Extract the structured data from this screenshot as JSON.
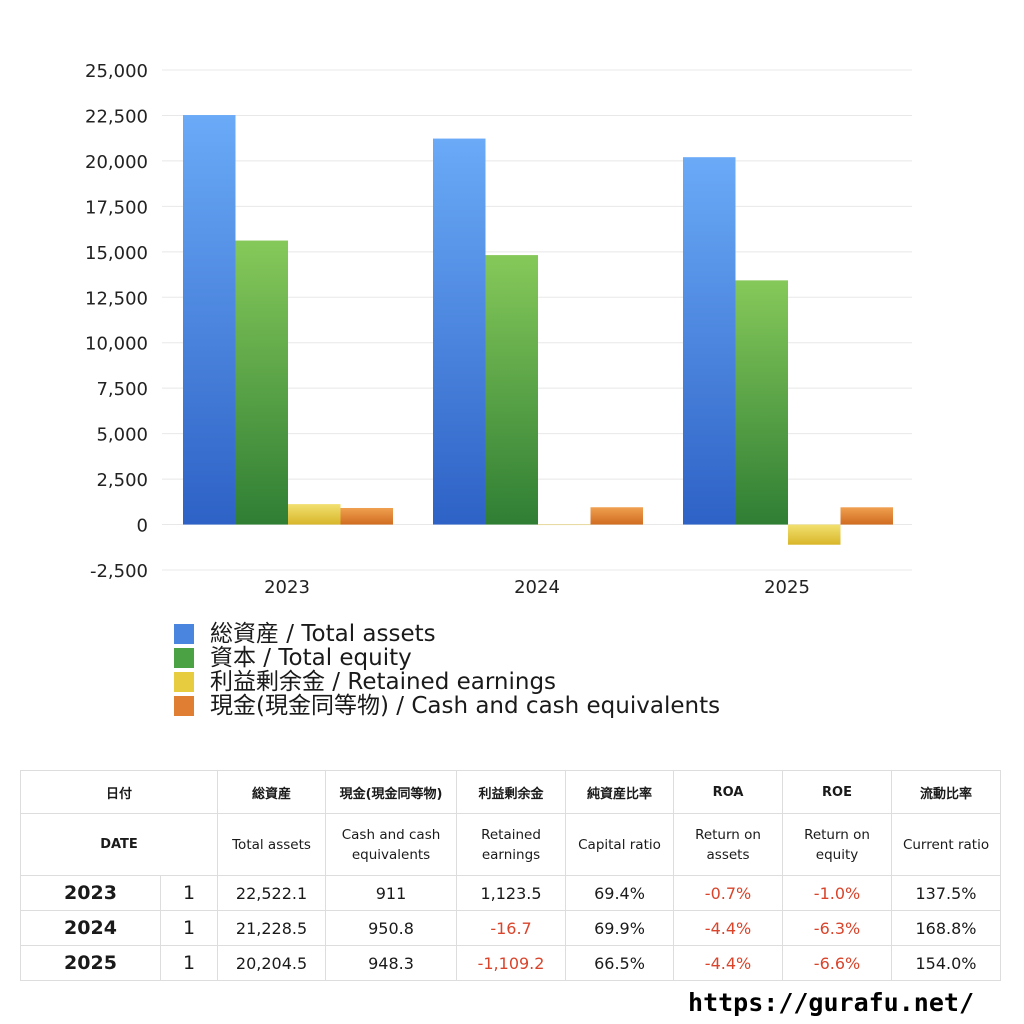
{
  "chart_data": {
    "type": "bar",
    "categories": [
      "2023",
      "2024",
      "2025"
    ],
    "series": [
      {
        "name": "総資産 / Total assets",
        "values": [
          22522.1,
          21228.5,
          20204.5
        ],
        "color_top": "#6aaaf7",
        "color_bottom": "#2e62c6"
      },
      {
        "name": "資本 / Total equity",
        "values": [
          15620,
          14820,
          13430
        ],
        "color_top": "#86c95a",
        "color_bottom": "#2f7e34"
      },
      {
        "name": "利益剰余金 / Retained earnings",
        "values": [
          1123.5,
          -16.7,
          -1109.2
        ],
        "color_top": "#f2e070",
        "color_bottom": "#d8b62a"
      },
      {
        "name": "現金(現金同等物) / Cash and cash equivalents",
        "values": [
          911,
          950.8,
          948.3
        ],
        "color_top": "#f0a050",
        "color_bottom": "#d06c20"
      }
    ],
    "ylim": [
      -2500,
      25000
    ],
    "yticks": [
      25000,
      22500,
      20000,
      17500,
      15000,
      12500,
      10000,
      7500,
      5000,
      2500,
      0,
      -2500
    ],
    "ytick_labels": [
      "25,000",
      "22,500",
      "20,000",
      "17,500",
      "15,000",
      "12,500",
      "10,000",
      "7,500",
      "5,000",
      "2,500",
      "0",
      "-2,500"
    ],
    "grid": true,
    "legend_position": "bottom"
  },
  "legend": [
    {
      "label": "総資産 / Total assets",
      "color": "#4a86e0"
    },
    {
      "label": "資本 / Total equity",
      "color": "#4aa245"
    },
    {
      "label": "利益剰余金 / Retained earnings",
      "color": "#e6cc3e"
    },
    {
      "label": "現金(現金同等物) / Cash and cash equivalents",
      "color": "#e07f33"
    }
  ],
  "table": {
    "head_jp": {
      "date": "日付",
      "total_assets": "総資産",
      "cash": "現金(現金同等物)",
      "retained": "利益剰余金",
      "capital_ratio": "純資産比率",
      "roa": "ROA",
      "roe": "ROE",
      "current_ratio": "流動比率"
    },
    "head_en": {
      "date": "DATE",
      "total_assets": "Total assets",
      "cash": "Cash and cash equivalents",
      "retained": "Retained earnings",
      "capital_ratio": "Capital ratio",
      "roa": "Return on assets",
      "roe": "Return on equity",
      "current_ratio": "Current ratio"
    },
    "rows": [
      {
        "year": "2023",
        "idx": "1",
        "total_assets": "22,522.1",
        "cash": "911",
        "retained": "1,123.5",
        "capital_ratio": "69.4%",
        "roa": "-0.7%",
        "roe": "-1.0%",
        "current_ratio": "137.5%"
      },
      {
        "year": "2024",
        "idx": "1",
        "total_assets": "21,228.5",
        "cash": "950.8",
        "retained": "-16.7",
        "capital_ratio": "69.9%",
        "roa": "-4.4%",
        "roe": "-6.3%",
        "current_ratio": "168.8%"
      },
      {
        "year": "2025",
        "idx": "1",
        "total_assets": "20,204.5",
        "cash": "948.3",
        "retained": "-1,109.2",
        "capital_ratio": "66.5%",
        "roa": "-4.4%",
        "roe": "-6.6%",
        "current_ratio": "154.0%"
      }
    ],
    "negative_color": "#d9442b"
  },
  "footer": {
    "url": "https://gurafu.net/"
  }
}
